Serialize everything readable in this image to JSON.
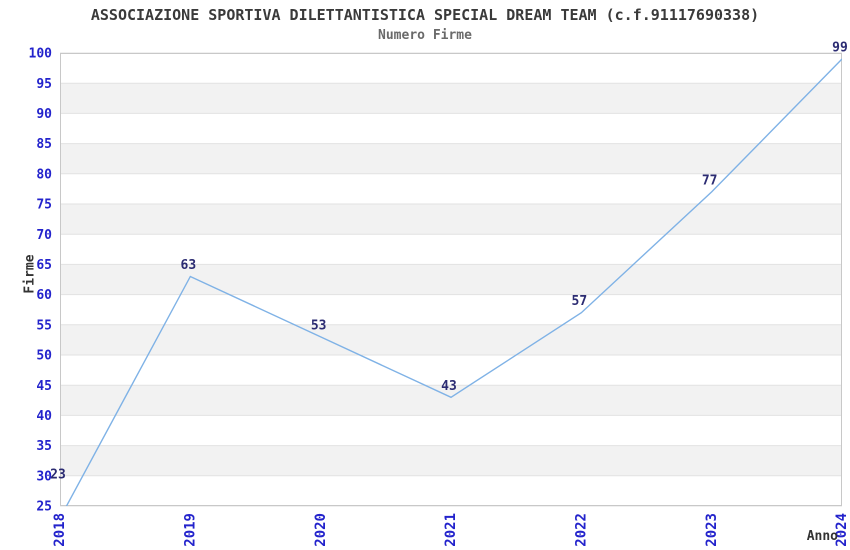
{
  "header": {
    "title": "ASSOCIAZIONE SPORTIVA DILETTANTISTICA SPECIAL DREAM TEAM (c.f.91117690338)",
    "subtitle": "Numero Firme"
  },
  "chart_data": {
    "type": "line",
    "title": "ASSOCIAZIONE SPORTIVA DILETTANTISTICA SPECIAL DREAM TEAM (c.f.91117690338)",
    "subtitle": "Numero Firme",
    "xlabel": "Anno",
    "ylabel": "Firme",
    "categories": [
      "2018",
      "2019",
      "2020",
      "2021",
      "2022",
      "2023",
      "2024"
    ],
    "series": [
      {
        "name": "Numero Firme",
        "values": [
          23,
          63,
          53,
          43,
          57,
          77,
          99
        ]
      }
    ],
    "value_labels": [
      "23",
      "63",
      "53",
      "43",
      "57",
      "77",
      "99"
    ],
    "ylim": [
      25,
      100
    ],
    "ytick_step": 5,
    "yticks": [
      25,
      30,
      35,
      40,
      45,
      50,
      55,
      60,
      65,
      70,
      75,
      80,
      85,
      90,
      95,
      100
    ],
    "grid": "alternating-horizontal-bands",
    "legend": "none",
    "x_tick_rotation_deg": -90,
    "colors": {
      "background": "#ffffff",
      "line": "#7fb2e6",
      "tick_label": "#2323cc",
      "value_label": "#2b2b72",
      "band": "#f2f2f2",
      "gridline": "#e2e2e2",
      "plot_border": "#c8c8c8",
      "title": "#3a3a3a",
      "subtitle": "#6a6a6a",
      "axis_title": "#333333"
    }
  }
}
